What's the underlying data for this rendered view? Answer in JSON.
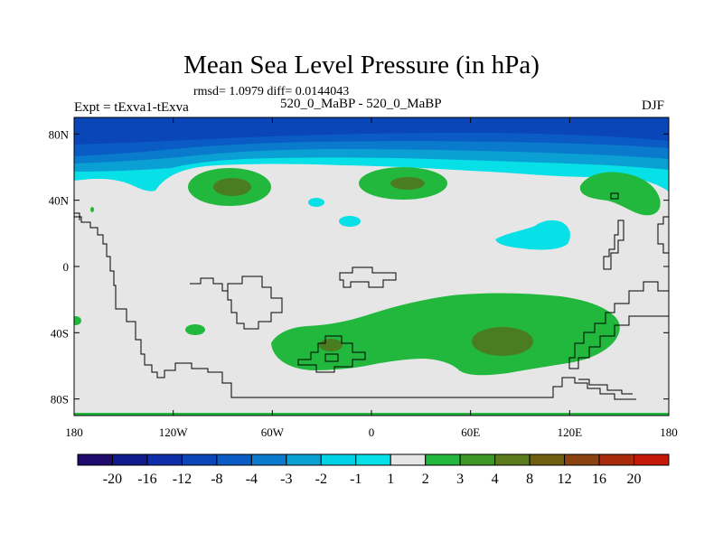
{
  "chart_data": {
    "type": "heatmap",
    "title": "Mean Sea Level Pressure (in hPa)",
    "stats": "rmsd= 1.0979 diff= 0.0144043",
    "left_label": "Expt = tExva1-tExva",
    "center_label": "520_0_MaBP - 520_0_MaBP",
    "right_label": "DJF",
    "x_range": [
      -180,
      180
    ],
    "y_range": [
      -90,
      90
    ],
    "x_ticks": [
      {
        "value": -180,
        "label": "180"
      },
      {
        "value": -120,
        "label": "120W"
      },
      {
        "value": -60,
        "label": "60W"
      },
      {
        "value": 0,
        "label": "0"
      },
      {
        "value": 60,
        "label": "60E"
      },
      {
        "value": 120,
        "label": "120E"
      },
      {
        "value": 180,
        "label": "180"
      }
    ],
    "y_ticks": [
      {
        "value": 80,
        "label": "80N"
      },
      {
        "value": 40,
        "label": "40N"
      },
      {
        "value": 0,
        "label": "0"
      },
      {
        "value": -40,
        "label": "40S"
      },
      {
        "value": -80,
        "label": "80S"
      }
    ],
    "colorbar": {
      "levels": [
        "-20",
        "-16",
        "-12",
        "-8",
        "-4",
        "-3",
        "-2",
        "-1",
        "1",
        "2",
        "3",
        "4",
        "8",
        "12",
        "16",
        "20"
      ],
      "colors": [
        "#1d0a6b",
        "#101a8a",
        "#0d2ea8",
        "#0a46b8",
        "#0a5cc4",
        "#0a7bcc",
        "#0aa0d4",
        "#00d2e6",
        "#06e0e6",
        "#e6e6e6",
        "#22b83e",
        "#3e9626",
        "#5a7a1c",
        "#6e5e10",
        "#8a4210",
        "#a82c0c",
        "#c41808"
      ]
    },
    "regions": [
      {
        "name": "arctic-low-band",
        "category": "-4 to -20",
        "lon_range": [
          -180,
          180
        ],
        "lat_range": [
          60,
          90
        ]
      },
      {
        "name": "north-pacific-green",
        "category": "1 to 2",
        "lon": -82,
        "lat": 47
      },
      {
        "name": "north-atlantic-green",
        "category": "1 to 2",
        "lon": 22,
        "lat": 48
      },
      {
        "name": "east-asia-green",
        "category": "1 to 2",
        "lon": 145,
        "lat": 44
      },
      {
        "name": "southern-ocean-green",
        "category": "1 to 2",
        "lon_range": [
          -60,
          140
        ],
        "lat_range": [
          -68,
          -18
        ]
      },
      {
        "name": "southern-ocean-peak",
        "category": "2 to 3",
        "lon": 78,
        "lat": -46
      },
      {
        "name": "tropical-cyan-anomaly",
        "category": "-1 to -2",
        "lon": 95,
        "lat": 18
      }
    ]
  }
}
